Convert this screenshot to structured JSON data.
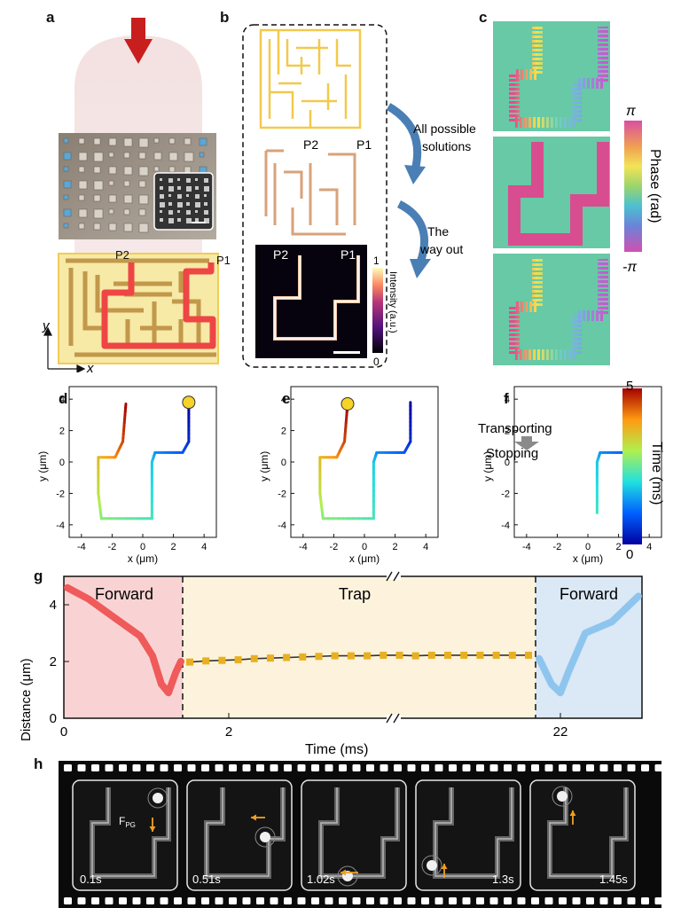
{
  "panels": {
    "a": "a",
    "b": "b",
    "c": "c",
    "d": "d",
    "e": "e",
    "f": "f",
    "g": "g",
    "h": "h"
  },
  "panel_a": {
    "p2": "P2",
    "p1": "P1",
    "axis_y": "y",
    "axis_x": "x"
  },
  "panel_b": {
    "p2_top": "P2",
    "p1_top": "P1",
    "p2_bottom": "P2",
    "p1_bottom": "P1",
    "arrow1_label_line1": "All possible",
    "arrow1_label_line2": "solutions",
    "arrow2_label_line1": "The",
    "arrow2_label_line2": "way out",
    "cbar_max": "1",
    "cbar_min": "0",
    "cbar_title": "Intensity (a.u.)"
  },
  "panel_c": {
    "cbar_max": "π",
    "cbar_min": "-π",
    "cbar_title": "Phase (rad)"
  },
  "trajectory": {
    "xlabel": "x (μm)",
    "ylabel": "y (μm)",
    "xticks": [
      "-4",
      "-2",
      "0",
      "2",
      "4"
    ],
    "yticks": [
      "4",
      "2",
      "0",
      "-2",
      "-4"
    ],
    "time_cbar_max": "5",
    "time_cbar_min": "0",
    "time_cbar_title": "Time (ms)",
    "transporting": "Transporting",
    "stopping": "Stopping"
  },
  "chart_data": [
    {
      "type": "line",
      "panel": "g",
      "xlabel": "Time (ms)",
      "ylabel": "Distance (μm)",
      "xticks": [
        "0",
        "2",
        "22"
      ],
      "yticks": [
        "0",
        "2",
        "4"
      ],
      "regions": [
        "Forward",
        "Trap",
        "Forward"
      ],
      "region_colors": [
        "#f9d3d3",
        "#fdf3dc",
        "#dbe8f5"
      ],
      "trap_values": [
        1.98,
        2.02,
        2.04,
        2.06,
        2.1,
        2.12,
        2.14,
        2.16,
        2.18,
        2.2,
        2.2,
        2.2,
        2.22,
        2.22,
        2.2,
        2.22,
        2.22,
        2.22,
        2.22,
        2.22,
        2.22,
        2.22
      ],
      "forward1_color": "#ef5a5a",
      "forward2_color": "#8ec5ef",
      "trap_marker_color": "#e8b021",
      "ylim": [
        0,
        5
      ]
    }
  ],
  "panel_h": {
    "frames": [
      {
        "time": "0.1s",
        "force": "F",
        "force_sub": "PG"
      },
      {
        "time": "0.51s"
      },
      {
        "time": "1.02s"
      },
      {
        "time": "1.3s"
      },
      {
        "time": "1.45s"
      }
    ]
  }
}
